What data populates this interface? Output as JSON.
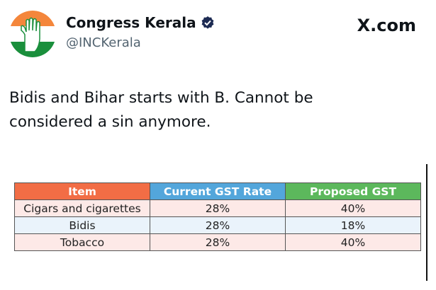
{
  "tweet": {
    "display_name": "Congress Kerala",
    "handle": "@INCKerala",
    "verified": true,
    "avatar_icon": "congress-hand-icon",
    "platform_logo": "X.com",
    "text_line1": "Bidis and Bihar starts with B. Cannot be",
    "text_line2": "considered a sin anymore."
  },
  "table": {
    "headers": [
      "Item",
      "Current GST Rate",
      "Proposed GST"
    ],
    "rows": [
      [
        "Cigars and cigarettes",
        "28%",
        "40%"
      ],
      [
        "Bidis",
        "28%",
        "18%"
      ],
      [
        "Tobacco",
        "28%",
        "40%"
      ]
    ]
  },
  "colors": {
    "header_item": "#f26d45",
    "header_current": "#53a6db",
    "header_proposed": "#5cb85c",
    "verified_badge": "#1d2b53"
  }
}
